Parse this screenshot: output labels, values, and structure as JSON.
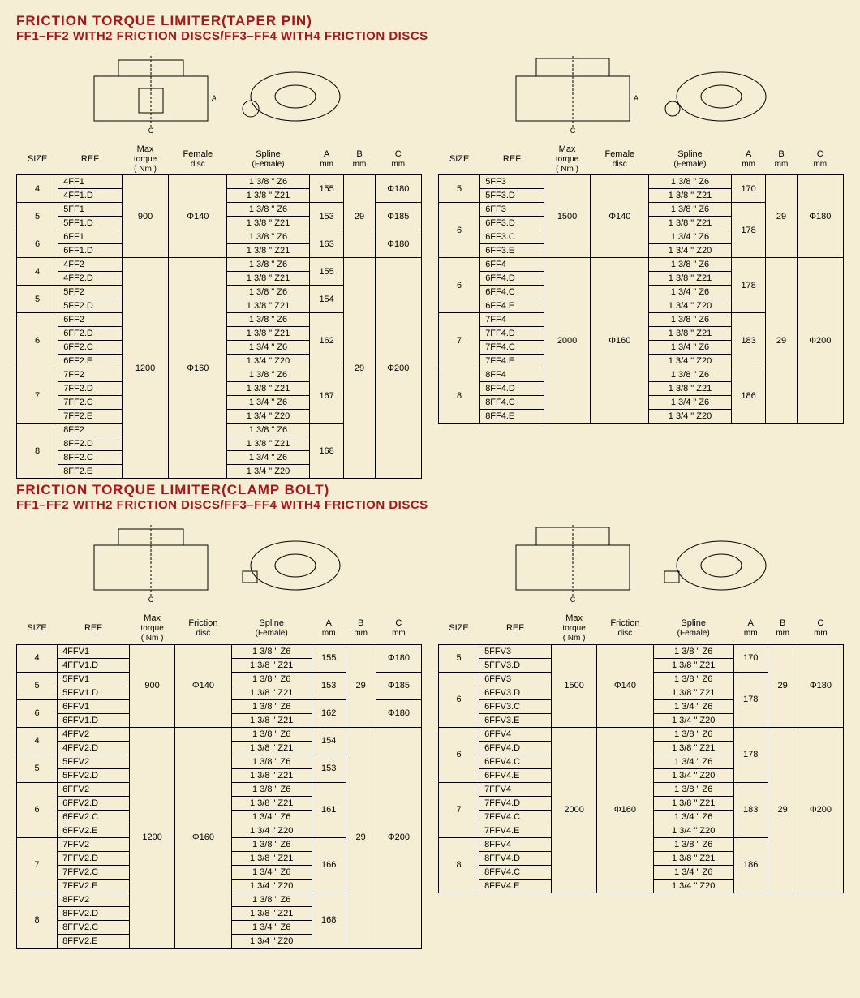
{
  "colors": {
    "heading": "#a31818",
    "page_bg": "#f6eed4",
    "border": "#000000",
    "text": "#000000"
  },
  "typography": {
    "heading_size": 17,
    "subheading_size": 15,
    "body_size": 11
  },
  "section1": {
    "title": "FRICTION TORQUE LIMITER(TAPER PIN)",
    "subtitle": "FF1–FF2 WITH2 FRICTION DISCS/FF3–FF4 WITH4 FRICTION DISCS",
    "left_headers": [
      "SIZE",
      "REF",
      "Max torque ( Nm )",
      "Female disc",
      "Spline (Female)",
      "A mm",
      "B mm",
      "C mm"
    ],
    "right_headers": [
      "SIZE",
      "REF",
      "Max torque ( Nm )",
      "Female disc",
      "Spline (Female)",
      "A mm",
      "B mm",
      "C mm"
    ],
    "left": [
      {
        "size": "4",
        "refs": [
          "4FF1",
          "4FF1.D"
        ],
        "splines": [
          "1 3/8 \" Z6",
          "1 3/8 \" Z21"
        ],
        "A": "155",
        "C": "Φ180",
        "torque": "900",
        "disc": "Φ140",
        "B": "29",
        "torque_span": 6,
        "disc_span": 6,
        "B_span": 6,
        "C_span": 2
      },
      {
        "size": "5",
        "refs": [
          "5FF1",
          "5FF1.D"
        ],
        "splines": [
          "1 3/8 \" Z6",
          "1 3/8 \" Z21"
        ],
        "A": "153",
        "C": "Φ185",
        "C_span": 2
      },
      {
        "size": "6",
        "refs": [
          "6FF1",
          "6FF1.D"
        ],
        "splines": [
          "1 3/8 \" Z6",
          "1 3/8 \" Z21"
        ],
        "A": "163",
        "C": "Φ180",
        "C_span": 2
      },
      {
        "size": "4",
        "refs": [
          "4FF2",
          "4FF2.D"
        ],
        "splines": [
          "1 3/8 \" Z6",
          "1 3/8 \" Z21"
        ],
        "A": "155",
        "torque": "1200",
        "disc": "Φ160",
        "B": "29",
        "C": "Φ200",
        "torque_span": 16,
        "disc_span": 16,
        "B_span": 16,
        "C_span": 16
      },
      {
        "size": "5",
        "refs": [
          "5FF2",
          "5FF2.D"
        ],
        "splines": [
          "1 3/8 \" Z6",
          "1 3/8 \" Z21"
        ],
        "A": "154"
      },
      {
        "size": "6",
        "refs": [
          "6FF2",
          "6FF2.D",
          "6FF2.C",
          "6FF2.E"
        ],
        "splines": [
          "1 3/8 \" Z6",
          "1 3/8 \" Z21",
          "1 3/4 \" Z6",
          "1 3/4 \" Z20"
        ],
        "A": "162"
      },
      {
        "size": "7",
        "refs": [
          "7FF2",
          "7FF2.D",
          "7FF2.C",
          "7FF2.E"
        ],
        "splines": [
          "1 3/8 \" Z6",
          "1 3/8 \" Z21",
          "1 3/4 \" Z6",
          "1 3/4 \" Z20"
        ],
        "A": "167"
      },
      {
        "size": "8",
        "refs": [
          "8FF2",
          "8FF2.D",
          "8FF2.C",
          "8FF2.E"
        ],
        "splines": [
          "1 3/8 \" Z6",
          "1 3/8 \" Z21",
          "1 3/4 \" Z6",
          "1 3/4 \" Z20"
        ],
        "A": "168"
      }
    ],
    "right": [
      {
        "size": "5",
        "refs": [
          "5FF3",
          "5FF3.D"
        ],
        "splines": [
          "1 3/8 \" Z6",
          "1 3/8 \" Z21"
        ],
        "A": "170",
        "torque": "1500",
        "disc": "Φ140",
        "B": "29",
        "C": "Φ180",
        "torque_span": 6,
        "disc_span": 6,
        "B_span": 6,
        "C_span": 6
      },
      {
        "size": "6",
        "refs": [
          "6FF3",
          "6FF3.D",
          "6FF3.C",
          "6FF3.E"
        ],
        "splines": [
          "1 3/8 \" Z6",
          "1 3/8 \" Z21",
          "1 3/4 \" Z6",
          "1 3/4 \" Z20"
        ],
        "A": "178"
      },
      {
        "size": "6",
        "refs": [
          "6FF4",
          "6FF4.D",
          "6FF4.C",
          "6FF4.E"
        ],
        "splines": [
          "1 3/8 \" Z6",
          "1 3/8 \" Z21",
          "1 3/4 \" Z6",
          "1 3/4 \" Z20"
        ],
        "A": "178",
        "torque": "2000",
        "disc": "Φ160",
        "B": "29",
        "C": "Φ200",
        "torque_span": 12,
        "disc_span": 12,
        "B_span": 12,
        "C_span": 12
      },
      {
        "size": "7",
        "refs": [
          "7FF4",
          "7FF4.D",
          "7FF4.C",
          "7FF4.E"
        ],
        "splines": [
          "1 3/8 \" Z6",
          "1 3/8 \" Z21",
          "1 3/4 \" Z6",
          "1 3/4 \" Z20"
        ],
        "A": "183"
      },
      {
        "size": "8",
        "refs": [
          "8FF4",
          "8FF4.D",
          "8FF4.C",
          "8FF4.E"
        ],
        "splines": [
          "1 3/8 \" Z6",
          "1 3/8 \" Z21",
          "1 3/4 \" Z6",
          "1 3/4 \" Z20"
        ],
        "A": "186"
      }
    ]
  },
  "section2": {
    "title": "FRICTION TORQUE LIMITER(CLAMP BOLT)",
    "subtitle": "FF1–FF2 WITH2 FRICTION DISCS/FF3–FF4 WITH4 FRICTION DISCS",
    "left_headers": [
      "SIZE",
      "REF",
      "Max torque ( Nm )",
      "Friction disc",
      "Spline (Female)",
      "A mm",
      "B mm",
      "C mm"
    ],
    "right_headers": [
      "SIZE",
      "REF",
      "Max torque ( Nm )",
      "Friction disc",
      "Spline (Female)",
      "A mm",
      "B mm",
      "C mm"
    ],
    "left": [
      {
        "size": "4",
        "refs": [
          "4FFV1",
          "4FFV1.D"
        ],
        "splines": [
          "1 3/8 \" Z6",
          "1 3/8 \" Z21"
        ],
        "A": "155",
        "C": "Φ180",
        "torque": "900",
        "disc": "Φ140",
        "B": "29",
        "torque_span": 6,
        "disc_span": 6,
        "B_span": 6,
        "C_span": 2
      },
      {
        "size": "5",
        "refs": [
          "5FFV1",
          "5FFV1.D"
        ],
        "splines": [
          "1 3/8 \" Z6",
          "1 3/8 \" Z21"
        ],
        "A": "153",
        "C": "Φ185",
        "C_span": 2
      },
      {
        "size": "6",
        "refs": [
          "6FFV1",
          "6FFV1.D"
        ],
        "splines": [
          "1 3/8 \" Z6",
          "1 3/8 \" Z21"
        ],
        "A": "162",
        "C": "Φ180",
        "C_span": 2
      },
      {
        "size": "4",
        "refs": [
          "4FFV2",
          "4FFV2.D"
        ],
        "splines": [
          "1 3/8 \" Z6",
          "1 3/8 \" Z21"
        ],
        "A": "154",
        "torque": "1200",
        "disc": "Φ160",
        "B": "29",
        "C": "Φ200",
        "torque_span": 16,
        "disc_span": 16,
        "B_span": 16,
        "C_span": 16
      },
      {
        "size": "5",
        "refs": [
          "5FFV2",
          "5FFV2.D"
        ],
        "splines": [
          "1 3/8 \" Z6",
          "1 3/8 \" Z21"
        ],
        "A": "153"
      },
      {
        "size": "6",
        "refs": [
          "6FFV2",
          "6FFV2.D",
          "6FFV2.C",
          "6FFV2.E"
        ],
        "splines": [
          "1 3/8 \" Z6",
          "1 3/8 \" Z21",
          "1 3/4 \" Z6",
          "1 3/4 \" Z20"
        ],
        "A": "161"
      },
      {
        "size": "7",
        "refs": [
          "7FFV2",
          "7FFV2.D",
          "7FFV2.C",
          "7FFV2.E"
        ],
        "splines": [
          "1 3/8 \" Z6",
          "1 3/8 \" Z21",
          "1 3/4 \" Z6",
          "1 3/4 \" Z20"
        ],
        "A": "166"
      },
      {
        "size": "8",
        "refs": [
          "8FFV2",
          "8FFV2.D",
          "8FFV2.C",
          "8FFV2.E"
        ],
        "splines": [
          "1 3/8 \" Z6",
          "1 3/8 \" Z21",
          "1 3/4 \" Z6",
          "1 3/4 \" Z20"
        ],
        "A": "168"
      }
    ],
    "right": [
      {
        "size": "5",
        "refs": [
          "5FFV3",
          "5FFV3.D"
        ],
        "splines": [
          "1 3/8 \" Z6",
          "1 3/8 \" Z21"
        ],
        "A": "170",
        "torque": "1500",
        "disc": "Φ140",
        "B": "29",
        "C": "Φ180",
        "torque_span": 6,
        "disc_span": 6,
        "B_span": 6,
        "C_span": 6
      },
      {
        "size": "6",
        "refs": [
          "6FFV3",
          "6FFV3.D",
          "6FFV3.C",
          "6FFV3.E"
        ],
        "splines": [
          "1 3/8 \" Z6",
          "1 3/8 \" Z21",
          "1 3/4 \" Z6",
          "1 3/4 \" Z20"
        ],
        "A": "178"
      },
      {
        "size": "6",
        "refs": [
          "6FFV4",
          "6FFV4.D",
          "6FFV4.C",
          "6FFV4.E"
        ],
        "splines": [
          "1 3/8 \" Z6",
          "1 3/8 \" Z21",
          "1 3/4 \" Z6",
          "1 3/4 \" Z20"
        ],
        "A": "178",
        "torque": "2000",
        "disc": "Φ160",
        "B": "29",
        "C": "Φ200",
        "torque_span": 12,
        "disc_span": 12,
        "B_span": 12,
        "C_span": 12
      },
      {
        "size": "7",
        "refs": [
          "7FFV4",
          "7FFV4.D",
          "7FFV4.C",
          "7FFV4.E"
        ],
        "splines": [
          "1 3/8 \" Z6",
          "1 3/8 \" Z21",
          "1 3/4 \" Z6",
          "1 3/4 \" Z20"
        ],
        "A": "183"
      },
      {
        "size": "8",
        "refs": [
          "8FFV4",
          "8FFV4.D",
          "8FFV4.C",
          "8FFV4.E"
        ],
        "splines": [
          "1 3/8 \" Z6",
          "1 3/8 \" Z21",
          "1 3/4 \" Z6",
          "1 3/4 \" Z20"
        ],
        "A": "186"
      }
    ]
  }
}
